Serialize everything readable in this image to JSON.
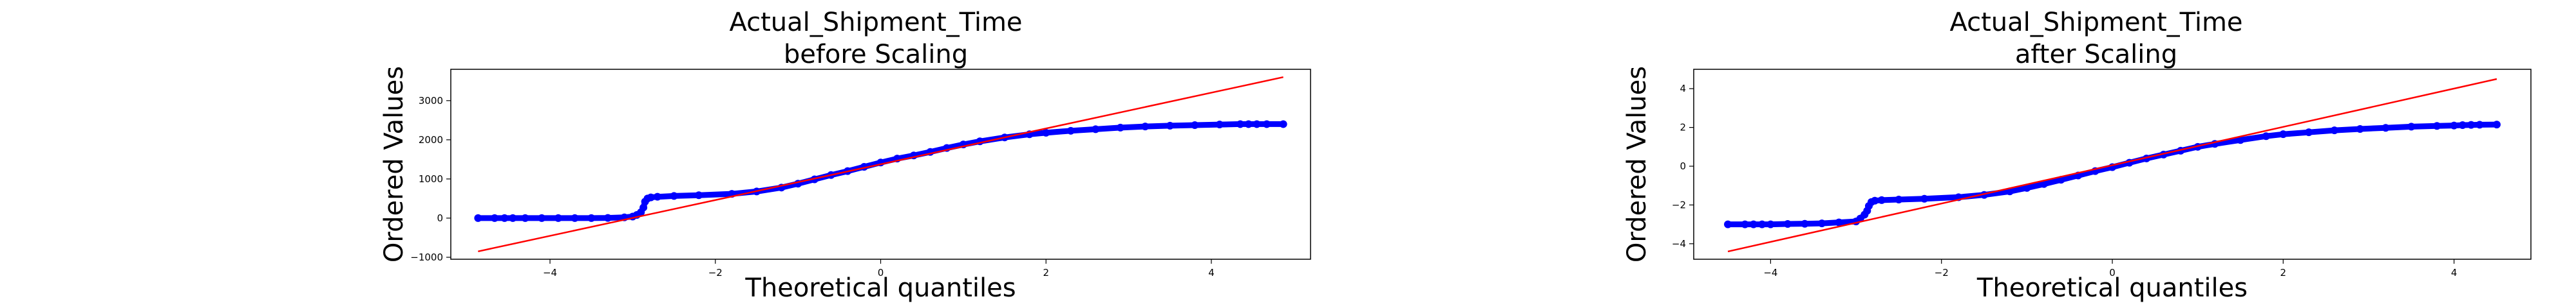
{
  "chart_data": [
    {
      "type": "scatter",
      "title_lines": [
        "Actual_Shipment_Time",
        "before Scaling"
      ],
      "xlabel": "Theoretical quantiles",
      "ylabel": "Ordered Values",
      "xlim": [
        -5.2,
        5.2
      ],
      "ylim": [
        -1050,
        3800
      ],
      "xticks": [
        -4,
        -2,
        0,
        2,
        4
      ],
      "yticks": [
        -1000,
        0,
        1000,
        2000,
        3000
      ],
      "grid": false,
      "series": [
        {
          "kind": "points",
          "color": "#0000ff",
          "x": [
            -4.87,
            -4.67,
            -4.55,
            -4.45,
            -4.3,
            -4.1,
            -3.9,
            -3.7,
            -3.5,
            -3.3,
            -3.1,
            -3.0,
            -2.95,
            -2.9,
            -2.87,
            -2.85,
            -2.82,
            -2.78,
            -2.7,
            -2.5,
            -2.2,
            -1.8,
            -1.5,
            -1.2,
            -1.0,
            -0.8,
            -0.6,
            -0.4,
            -0.2,
            0.0,
            0.2,
            0.4,
            0.6,
            0.8,
            1.0,
            1.2,
            1.5,
            1.8,
            2.0,
            2.3,
            2.6,
            2.9,
            3.2,
            3.5,
            3.8,
            4.1,
            4.35,
            4.45,
            4.55,
            4.67,
            4.87
          ],
          "y": [
            0,
            0,
            0,
            0,
            0,
            0,
            0,
            0,
            0,
            5,
            20,
            40,
            80,
            150,
            270,
            420,
            500,
            530,
            545,
            565,
            585,
            620,
            680,
            780,
            880,
            990,
            1100,
            1200,
            1310,
            1420,
            1520,
            1600,
            1690,
            1790,
            1880,
            1960,
            2060,
            2140,
            2180,
            2230,
            2270,
            2310,
            2340,
            2360,
            2375,
            2390,
            2400,
            2400,
            2400,
            2400,
            2400
          ]
        },
        {
          "kind": "fit-line",
          "color": "#ff0000",
          "x": [
            -4.87,
            4.87
          ],
          "y": [
            -850,
            3600
          ]
        }
      ]
    },
    {
      "type": "scatter",
      "title_lines": [
        "Actual_Shipment_Time",
        "after Scaling"
      ],
      "xlabel": "Theoretical quantiles",
      "ylabel": "Ordered Values",
      "xlim": [
        -4.9,
        4.9
      ],
      "ylim": [
        -4.8,
        5.0
      ],
      "xticks": [
        -4,
        -2,
        0,
        2,
        4
      ],
      "yticks": [
        -4,
        -2,
        0,
        2,
        4
      ],
      "grid": false,
      "series": [
        {
          "kind": "points",
          "color": "#0000ff",
          "x": [
            -4.5,
            -4.3,
            -4.2,
            -4.1,
            -4.0,
            -3.8,
            -3.6,
            -3.4,
            -3.2,
            -3.0,
            -2.95,
            -2.9,
            -2.87,
            -2.85,
            -2.82,
            -2.78,
            -2.7,
            -2.5,
            -2.2,
            -1.8,
            -1.5,
            -1.2,
            -1.0,
            -0.8,
            -0.6,
            -0.4,
            -0.2,
            0.0,
            0.2,
            0.4,
            0.6,
            0.8,
            1.0,
            1.2,
            1.5,
            1.8,
            2.0,
            2.3,
            2.6,
            2.9,
            3.2,
            3.5,
            3.8,
            4.0,
            4.1,
            4.2,
            4.3,
            4.5
          ],
          "y": [
            -3.0,
            -3.0,
            -3.0,
            -3.0,
            -3.0,
            -2.98,
            -2.97,
            -2.95,
            -2.9,
            -2.85,
            -2.7,
            -2.5,
            -2.3,
            -2.05,
            -1.85,
            -1.78,
            -1.75,
            -1.72,
            -1.68,
            -1.6,
            -1.48,
            -1.3,
            -1.12,
            -0.92,
            -0.7,
            -0.48,
            -0.25,
            -0.05,
            0.18,
            0.4,
            0.6,
            0.8,
            1.0,
            1.15,
            1.35,
            1.55,
            1.65,
            1.75,
            1.85,
            1.92,
            1.98,
            2.04,
            2.08,
            2.1,
            2.12,
            2.13,
            2.14,
            2.15
          ]
        },
        {
          "kind": "fit-line",
          "color": "#ff0000",
          "x": [
            -4.5,
            4.5
          ],
          "y": [
            -4.4,
            4.5
          ]
        }
      ]
    }
  ]
}
